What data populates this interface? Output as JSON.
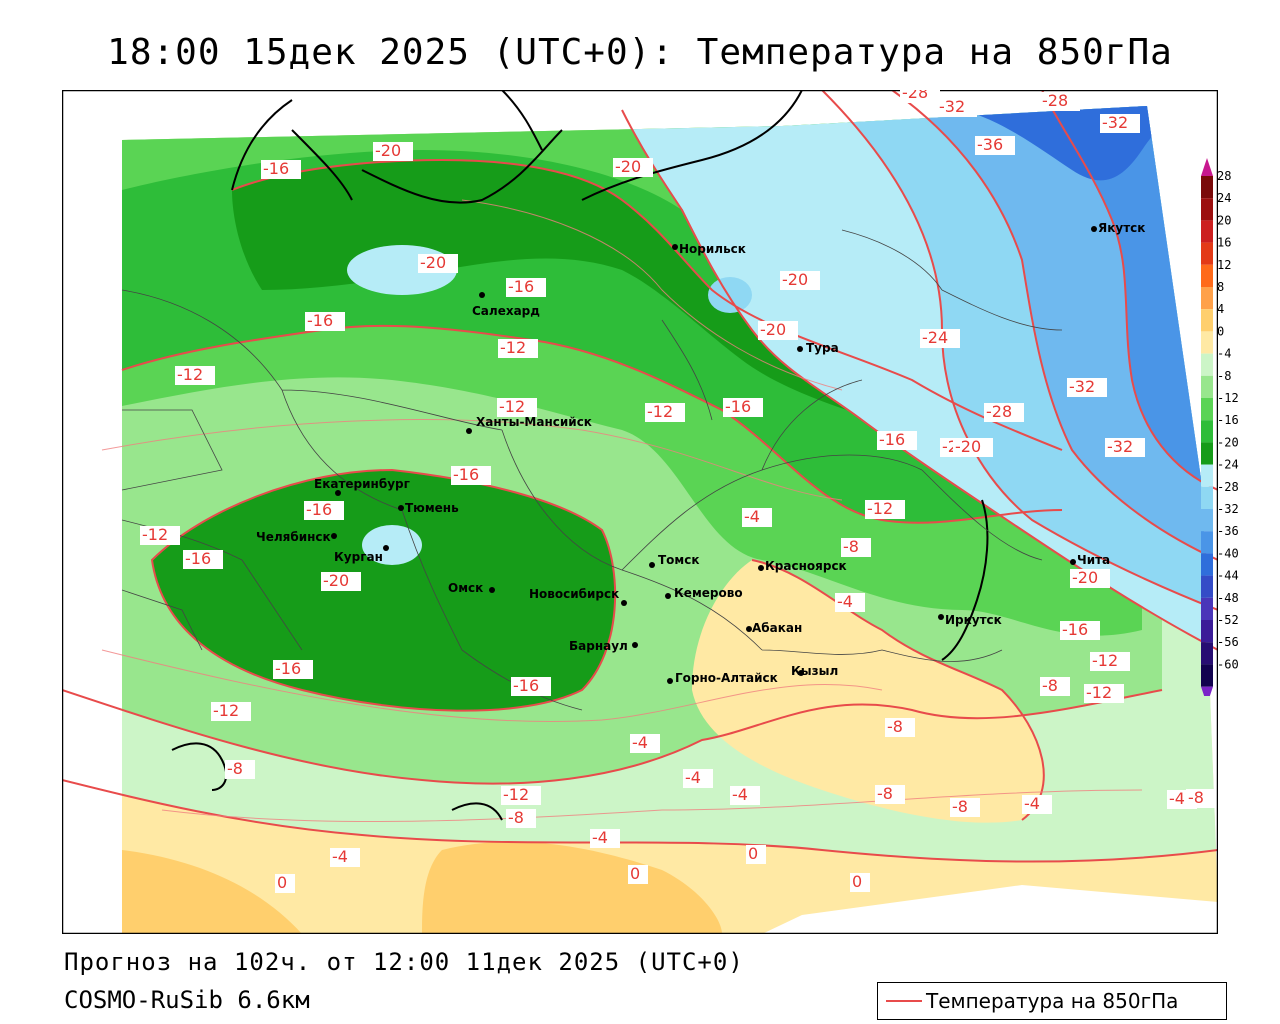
{
  "title": "18:00 15дек 2025 (UTC+0): Температура на 850гПа",
  "footer": {
    "forecast": "Прогноз на 102ч. от 12:00 11дек 2025 (UTC+0)",
    "model": "COSMO-RuSib 6.6км"
  },
  "legend": {
    "label": "Температура на 850гПа",
    "line_color": "#e84b4b"
  },
  "colorbar": {
    "labels": [
      "28",
      "24",
      "20",
      "16",
      "12",
      "8",
      "4",
      "0",
      "-4",
      "-8",
      "-12",
      "-16",
      "-20",
      "-24",
      "-28",
      "-32",
      "-36",
      "-40",
      "-44",
      "-48",
      "-52",
      "-56",
      "-60"
    ],
    "colors": [
      "#7a0a0a",
      "#9c0f0f",
      "#cc1f1f",
      "#e33a17",
      "#ff6a1a",
      "#ffa14a",
      "#ffcf6d",
      "#ffe9a4",
      "#ccf5c7",
      "#98e68d",
      "#5ad454",
      "#2ebd39",
      "#169c19",
      "#b6ecf7",
      "#8fd8f3",
      "#6fb9ef",
      "#4a95e7",
      "#2f6edb",
      "#344cc7",
      "#4a36b9",
      "#3b1c98",
      "#270d72",
      "#12024f"
    ],
    "tip_top_color": "#c8188f",
    "tip_bottom_color": "#7b24c8"
  },
  "cities": [
    {
      "name": "Норильск"
    },
    {
      "name": "Якутск"
    },
    {
      "name": "Салехард"
    },
    {
      "name": "Тура"
    },
    {
      "name": "Ханты-Мансийск"
    },
    {
      "name": "Екатеринбург"
    },
    {
      "name": "Тюмень"
    },
    {
      "name": "Челябинск"
    },
    {
      "name": "Курган"
    },
    {
      "name": "Омск"
    },
    {
      "name": "Томск"
    },
    {
      "name": "Новосибирск"
    },
    {
      "name": "Кемерово"
    },
    {
      "name": "Красноярск"
    },
    {
      "name": "Барнаул"
    },
    {
      "name": "Абакан"
    },
    {
      "name": "Горно-Алтайск"
    },
    {
      "name": "Кызыл"
    },
    {
      "name": "Иркутск"
    },
    {
      "name": "Чита"
    }
  ],
  "isotherm_labels": [
    "-28",
    "-32",
    "-28",
    "-32",
    "-36",
    "-20",
    "-16",
    "-20",
    "-20",
    "-20",
    "-20",
    "-16",
    "-16",
    "-12",
    "-12",
    "-12",
    "-24",
    "-20",
    "-12",
    "-16",
    "-16",
    "-20",
    "-28",
    "-32",
    "-32",
    "-16",
    "-16",
    "-12",
    "-16",
    "-20",
    "-4",
    "-8",
    "-12",
    "-16",
    "-4",
    "-20",
    "-16",
    "-12",
    "-16",
    "-12",
    "-12",
    "-8",
    "-8",
    "-4",
    "-8",
    "-8",
    "-4",
    "-4",
    "-4",
    "-8",
    "-4",
    "0",
    "-4",
    "-4",
    "0",
    "0",
    "0",
    "-8",
    "-12",
    "-8"
  ]
}
